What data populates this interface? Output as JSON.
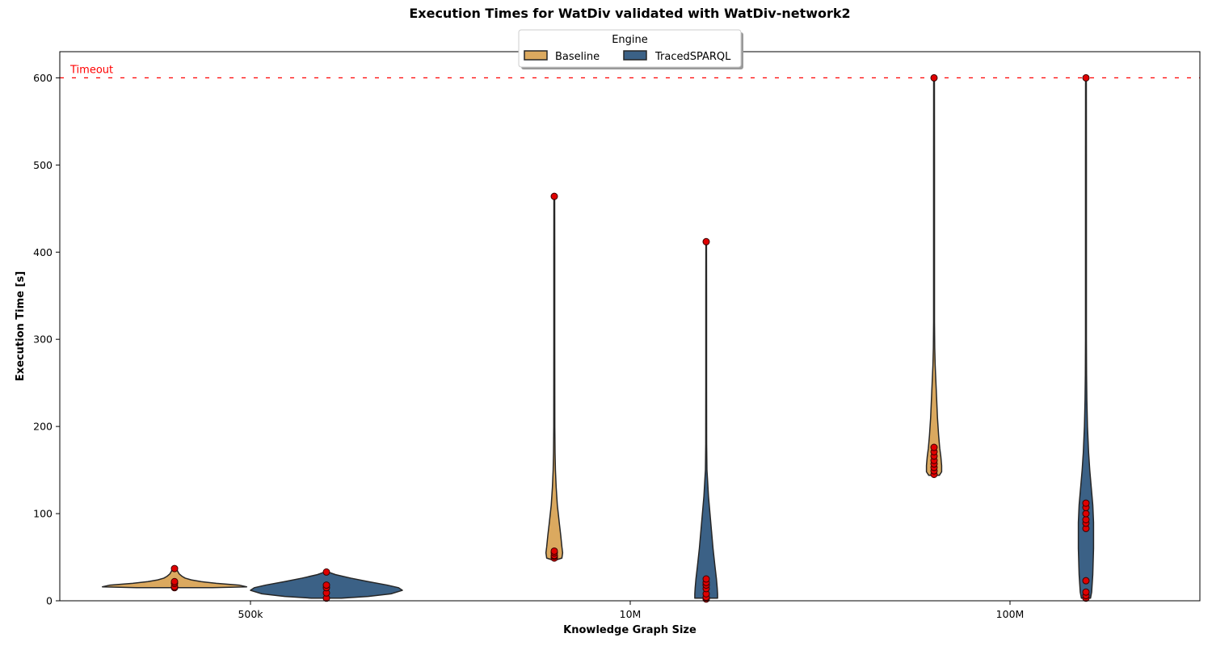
{
  "chart_data": {
    "type": "violin",
    "title": "Execution Times for WatDiv validated with WatDiv-network2",
    "xlabel": "Knowledge Graph Size",
    "ylabel": "Execution Time [s]",
    "ylim": [
      0,
      630
    ],
    "yticks": [
      0,
      100,
      200,
      300,
      400,
      500,
      600
    ],
    "categories": [
      "500k",
      "10M",
      "100M"
    ],
    "legend": {
      "title": "Engine",
      "placement": "upper-center",
      "entries": [
        "Baseline",
        "TracedSPARQL"
      ]
    },
    "reference_line": {
      "value": 600,
      "label": "Timeout",
      "color": "#ff0000"
    },
    "colors": {
      "Baseline": "#dba95f",
      "TracedSPARQL": "#3b6186",
      "points": "#e00000",
      "outline": "#262626"
    },
    "series": [
      {
        "name": "Baseline",
        "violins": [
          {
            "category": "500k",
            "profile": [
              [
                15,
                0.5
              ],
              [
                16,
                0.95
              ],
              [
                18,
                0.85
              ],
              [
                20,
                0.55
              ],
              [
                22,
                0.35
              ],
              [
                24,
                0.22
              ],
              [
                26,
                0.14
              ],
              [
                28,
                0.1
              ],
              [
                31,
                0.06
              ],
              [
                34,
                0.04
              ],
              [
                36,
                0.03
              ],
              [
                37.5,
                0.01
              ]
            ],
            "points": [
              15,
              16,
              20,
              22,
              37
            ]
          },
          {
            "category": "10M",
            "profile": [
              [
                47,
                0.03
              ],
              [
                49,
                0.1
              ],
              [
                55,
                0.11
              ],
              [
                62,
                0.1
              ],
              [
                75,
                0.085
              ],
              [
                90,
                0.065
              ],
              [
                110,
                0.04
              ],
              [
                130,
                0.025
              ],
              [
                150,
                0.015
              ],
              [
                170,
                0.01
              ],
              [
                200,
                0.007
              ],
              [
                300,
                0.006
              ],
              [
                400,
                0.006
              ],
              [
                464,
                0.005
              ]
            ],
            "points": [
              49,
              51,
              52,
              55,
              57,
              464
            ]
          },
          {
            "category": "100M",
            "profile": [
              [
                144,
                0.07
              ],
              [
                148,
                0.1
              ],
              [
                155,
                0.1
              ],
              [
                165,
                0.09
              ],
              [
                175,
                0.075
              ],
              [
                190,
                0.06
              ],
              [
                210,
                0.045
              ],
              [
                230,
                0.035
              ],
              [
                250,
                0.025
              ],
              [
                270,
                0.015
              ],
              [
                290,
                0.009
              ],
              [
                320,
                0.006
              ],
              [
                400,
                0.006
              ],
              [
                500,
                0.006
              ],
              [
                600,
                0.005
              ]
            ],
            "points": [
              145,
              149,
              153,
              157,
              161,
              166,
              171,
              176,
              600
            ]
          }
        ]
      },
      {
        "name": "TracedSPARQL",
        "violins": [
          {
            "category": "500k",
            "profile": [
              [
                3,
                0.2
              ],
              [
                5,
                0.55
              ],
              [
                8,
                0.85
              ],
              [
                12,
                1.0
              ],
              [
                15,
                0.95
              ],
              [
                18,
                0.8
              ],
              [
                22,
                0.55
              ],
              [
                26,
                0.32
              ],
              [
                30,
                0.12
              ],
              [
                32.5,
                0.04
              ]
            ],
            "points": [
              3,
              9,
              15,
              18,
              33
            ]
          },
          {
            "category": "10M",
            "profile": [
              [
                3,
                0.15
              ],
              [
                8,
                0.15
              ],
              [
                15,
                0.145
              ],
              [
                25,
                0.135
              ],
              [
                40,
                0.115
              ],
              [
                60,
                0.09
              ],
              [
                80,
                0.07
              ],
              [
                100,
                0.05
              ],
              [
                120,
                0.03
              ],
              [
                140,
                0.017
              ],
              [
                150,
                0.01
              ],
              [
                180,
                0.006
              ],
              [
                250,
                0.005
              ],
              [
                350,
                0.005
              ],
              [
                412,
                0.004
              ]
            ],
            "points": [
              2,
              4,
              8,
              14,
              18,
              21,
              25,
              412
            ]
          },
          {
            "category": "100M",
            "profile": [
              [
                3,
                0.06
              ],
              [
                10,
                0.075
              ],
              [
                30,
                0.09
              ],
              [
                60,
                0.1
              ],
              [
                90,
                0.1
              ],
              [
                110,
                0.09
              ],
              [
                130,
                0.07
              ],
              [
                150,
                0.05
              ],
              [
                170,
                0.035
              ],
              [
                200,
                0.02
              ],
              [
                230,
                0.012
              ],
              [
                260,
                0.008
              ],
              [
                300,
                0.006
              ],
              [
                400,
                0.006
              ],
              [
                500,
                0.006
              ],
              [
                600,
                0.005
              ]
            ],
            "points": [
              3,
              6,
              10,
              23,
              83,
              89,
              93,
              100,
              107,
              112,
              600
            ]
          }
        ]
      }
    ]
  }
}
